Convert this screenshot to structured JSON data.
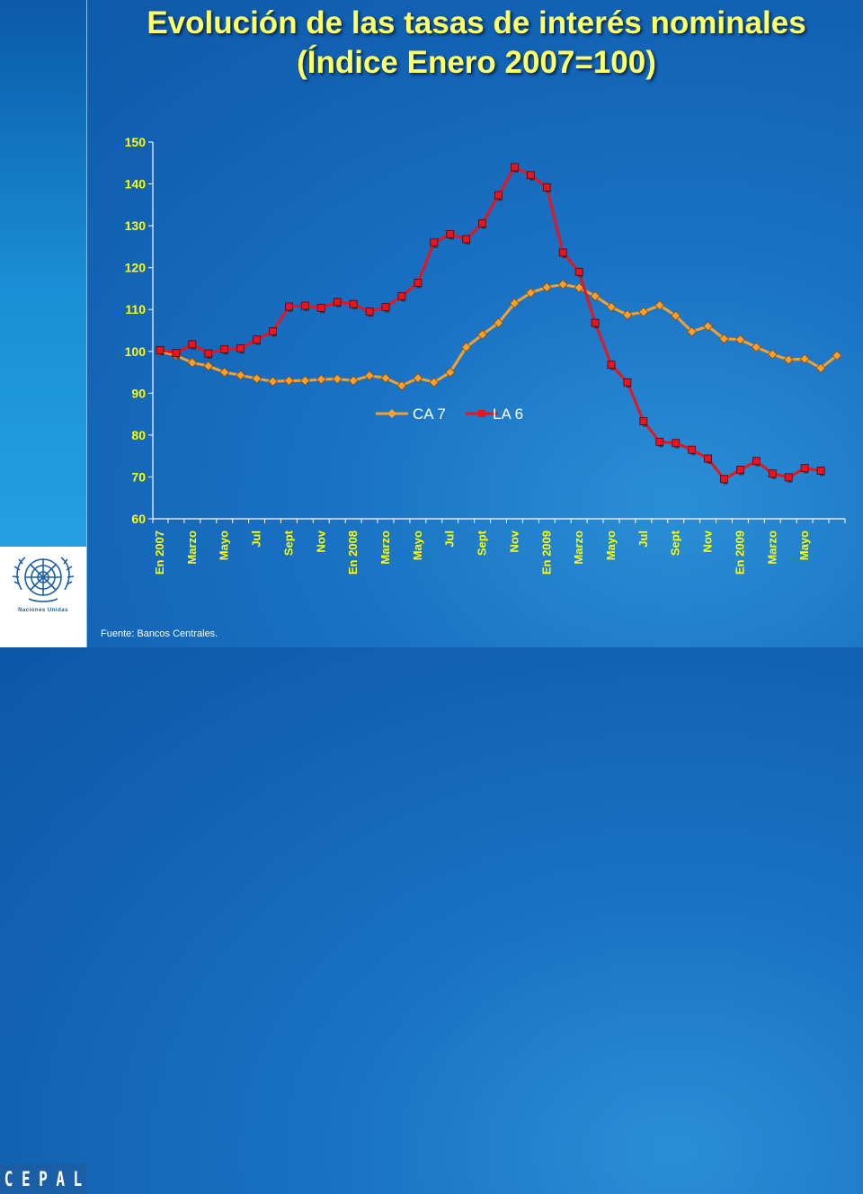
{
  "title_line1": "Evolución de las tasas de interés nominales",
  "title_line2": "(Índice Enero 2007=100)",
  "source": "Fuente: Bancos Centrales.",
  "logo": {
    "org_name": "Naciones Unidas",
    "letters": [
      "C",
      "E",
      "P",
      "A",
      "L"
    ]
  },
  "colors": {
    "ca7": "#f5a030",
    "la6": "#e8141e",
    "axis_text": "#ffff00",
    "accent": "#ffff66"
  },
  "chart_data": {
    "type": "line",
    "ylim": [
      60,
      150
    ],
    "yticks": [
      60,
      70,
      80,
      90,
      100,
      110,
      120,
      130,
      140,
      150
    ],
    "xlabels": [
      "En 2007",
      "Marzo",
      "Mayo",
      "Jul",
      "Sept",
      "Nov",
      "En 2008",
      "Marzo",
      "Mayo",
      "Jul",
      "Sept",
      "Nov",
      "En 2009",
      "Marzo",
      "Mayo",
      "Jul",
      "Sept",
      "Nov",
      "En 2009",
      "Marzo",
      "Mayo"
    ],
    "xlabel_index": [
      0,
      2,
      4,
      6,
      8,
      10,
      12,
      14,
      16,
      18,
      20,
      22,
      24,
      26,
      28,
      30,
      32,
      34,
      36,
      38,
      40
    ],
    "legend_position": "center",
    "series": [
      {
        "name": "CA 7",
        "color": "#f5a030",
        "marker": "diamond",
        "values": [
          100,
          99,
          97.3,
          96.5,
          95,
          94.3,
          93.5,
          92.8,
          93,
          93,
          93.3,
          93.4,
          93,
          94.2,
          93.6,
          91.8,
          93.6,
          92.6,
          95,
          101,
          104,
          106.8,
          111.5,
          114,
          115.3,
          116,
          115.2,
          113.2,
          110.6,
          108.7,
          109.4,
          111,
          108.5,
          104.7,
          106,
          103,
          102.8,
          101,
          99.3,
          98,
          98.2,
          96,
          99
        ]
      },
      {
        "name": "LA 6",
        "color": "#e8141e",
        "marker": "square",
        "values": [
          100.3,
          99.6,
          101.7,
          99.5,
          100.5,
          100.7,
          102.8,
          104.8,
          110.7,
          110.9,
          110.4,
          111.8,
          111.3,
          109.5,
          110.6,
          113.2,
          116.4,
          126,
          128,
          126.8,
          130.6,
          137.3,
          144,
          142.1,
          139.2,
          123.6,
          119,
          106.8,
          96.8,
          92.6,
          83.3,
          78.4,
          78.1,
          76.5,
          74.4,
          69.5,
          71.7,
          73.8,
          70.8,
          69.9,
          72.1,
          71.5
        ]
      }
    ]
  }
}
